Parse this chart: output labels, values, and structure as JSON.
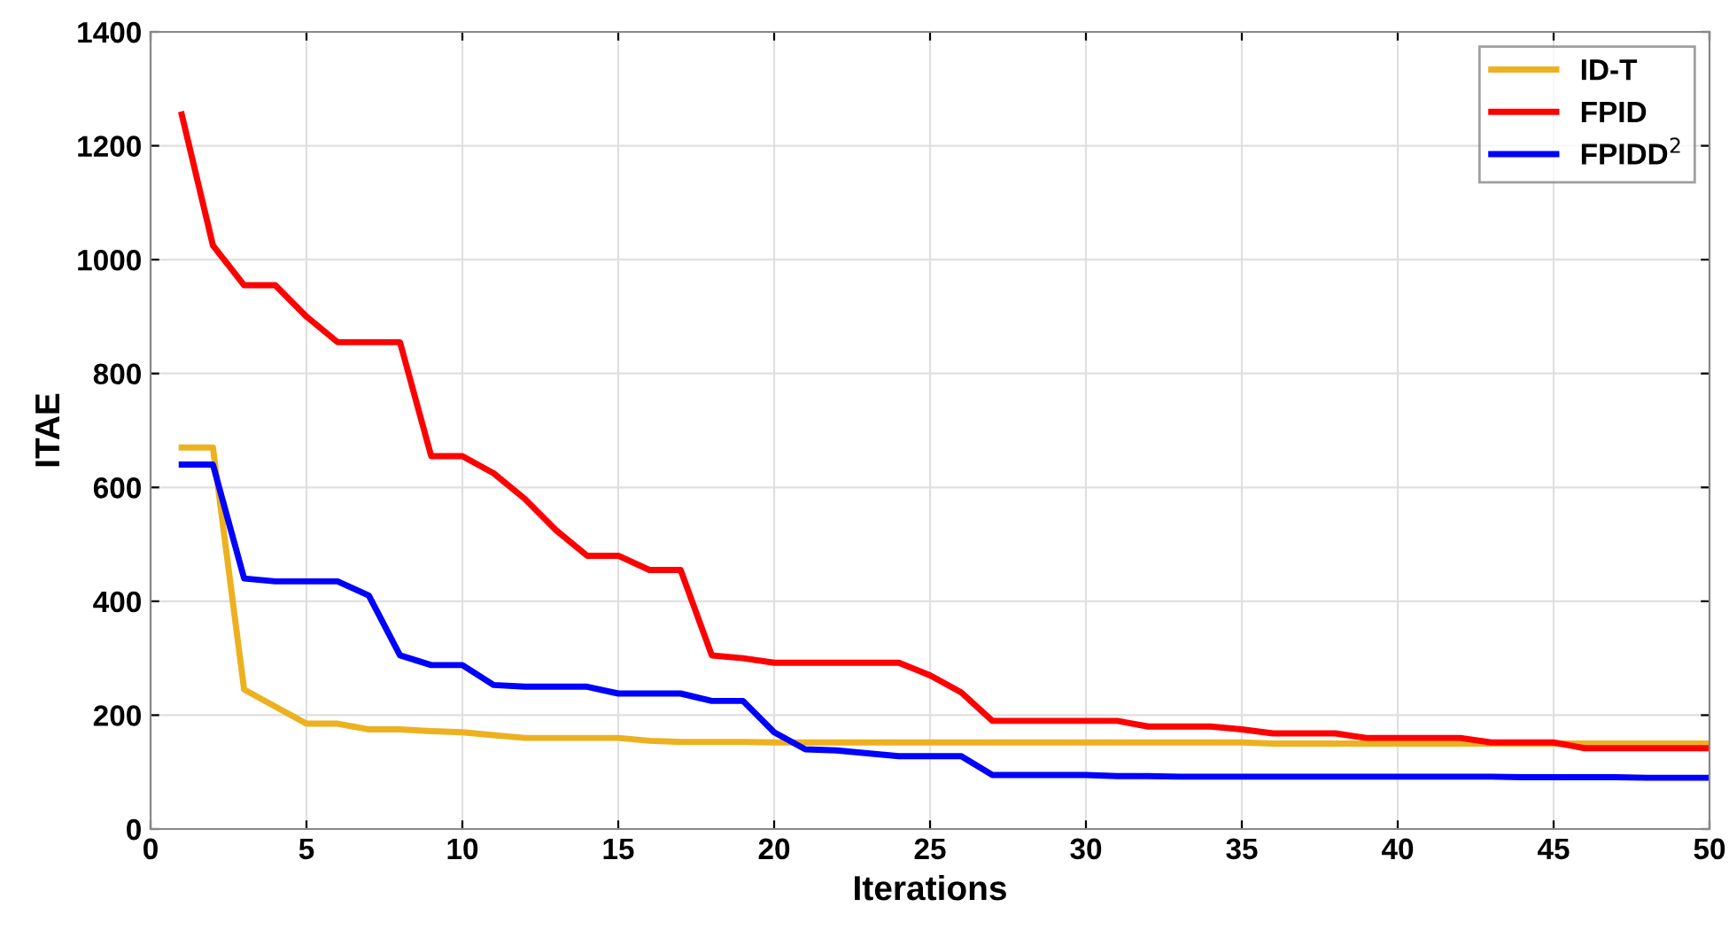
{
  "chart_data": {
    "type": "line",
    "xlabel": "Iterations",
    "ylabel": "ITAE",
    "x": [
      1,
      2,
      3,
      4,
      5,
      6,
      7,
      8,
      9,
      10,
      11,
      12,
      13,
      14,
      15,
      16,
      17,
      18,
      19,
      20,
      21,
      22,
      23,
      24,
      25,
      26,
      27,
      28,
      29,
      30,
      31,
      32,
      33,
      34,
      35,
      36,
      37,
      38,
      39,
      40,
      41,
      42,
      43,
      44,
      45,
      46,
      47,
      48,
      49,
      50
    ],
    "series": [
      {
        "name": "ID-T",
        "color": "#edb120",
        "values": [
          670,
          670,
          245,
          215,
          185,
          185,
          175,
          175,
          172,
          170,
          165,
          160,
          160,
          160,
          160,
          155,
          153,
          153,
          153,
          152,
          152,
          152,
          152,
          152,
          152,
          152,
          152,
          152,
          152,
          152,
          152,
          152,
          152,
          152,
          152,
          150,
          150,
          150,
          150,
          150,
          150,
          150,
          150,
          150,
          150,
          150,
          150,
          150,
          150,
          150
        ]
      },
      {
        "name": "FPID",
        "color": "#ff0000",
        "values": [
          1255,
          1025,
          955,
          955,
          900,
          855,
          855,
          855,
          655,
          655,
          625,
          580,
          525,
          480,
          480,
          455,
          455,
          305,
          300,
          292,
          292,
          292,
          292,
          292,
          270,
          240,
          190,
          190,
          190,
          190,
          190,
          180,
          180,
          180,
          175,
          168,
          168,
          168,
          160,
          160,
          160,
          160,
          152,
          152,
          152,
          142,
          142,
          142,
          142,
          142
        ]
      },
      {
        "name": "FPIDD$^{2}$",
        "color": "#0000ff",
        "values": [
          640,
          640,
          440,
          435,
          435,
          435,
          410,
          305,
          288,
          288,
          253,
          250,
          250,
          250,
          238,
          238,
          238,
          225,
          225,
          170,
          140,
          138,
          133,
          128,
          128,
          128,
          95,
          95,
          95,
          95,
          93,
          93,
          92,
          92,
          92,
          92,
          92,
          92,
          92,
          92,
          92,
          92,
          92,
          91,
          91,
          91,
          91,
          90,
          90,
          90
        ]
      }
    ],
    "xlim": [
      0,
      50
    ],
    "xticks": [
      0,
      5,
      10,
      15,
      20,
      25,
      30,
      35,
      40,
      45,
      50
    ],
    "ylim": [
      0,
      1400
    ],
    "yticks": [
      0,
      200,
      400,
      600,
      800,
      1000,
      1200,
      1400
    ],
    "grid": true,
    "legend": "top right",
    "line_style": "solid",
    "marker": "none"
  }
}
